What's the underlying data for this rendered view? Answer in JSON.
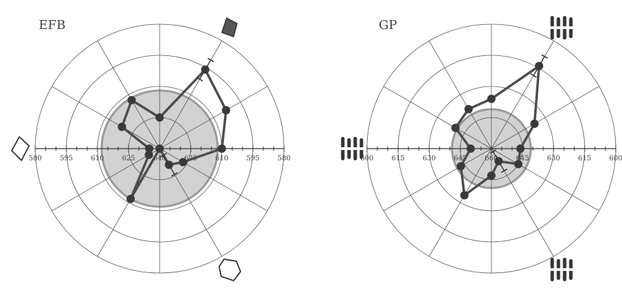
{
  "chart_data": [
    {
      "type": "polar-line",
      "title": "EFB",
      "radial_axis": {
        "center_value": 640,
        "outer_value": 580,
        "rings": [
          580,
          595,
          610,
          625,
          640
        ]
      },
      "tick_labels": [
        "580",
        "595",
        "610",
        "625",
        "640",
        "625",
        "610",
        "595",
        "580"
      ],
      "shaded_disc_value": 612,
      "angles_deg": [
        0,
        30,
        60,
        90,
        120,
        150,
        180,
        210,
        240,
        270,
        300,
        330
      ],
      "series": [
        {
          "values": [
            610,
            603,
            596,
            625,
            613,
            619,
            635,
            634,
            612,
            640,
            631,
            627
          ]
        }
      ],
      "error_bars": [
        {
          "angle_deg": 60,
          "value": 596
        },
        {
          "angle_deg": 300,
          "value": 631
        }
      ],
      "markers": [
        {
          "angle_deg": 60,
          "glyph": "filled-diamond",
          "color": "#555555"
        },
        {
          "angle_deg": 180,
          "glyph": "open-diamond",
          "color": "#ffffff"
        },
        {
          "angle_deg": 300,
          "glyph": "open-hexagon",
          "color": "#ffffff"
        }
      ],
      "grid": true
    },
    {
      "type": "polar-line",
      "title": "GP",
      "radial_axis": {
        "center_value": 660,
        "outer_value": 600,
        "rings": [
          600,
          615,
          630,
          645,
          660
        ]
      },
      "tick_labels": [
        "600",
        "615",
        "630",
        "645",
        "660",
        "645",
        "630",
        "615",
        "600"
      ],
      "shaded_disc_value": 641,
      "angles_deg": [
        0,
        30,
        60,
        90,
        120,
        150,
        180,
        210,
        240,
        270,
        300,
        330
      ],
      "series": [
        {
          "values": [
            646,
            636,
            614,
            636,
            638,
            640,
            650,
            643,
            634,
            647,
            653,
            645
          ]
        }
      ],
      "error_bars": [
        {
          "angle_deg": 60,
          "value": 614
        },
        {
          "angle_deg": 300,
          "value": 653
        }
      ],
      "markers": [
        {
          "angle_deg": 60,
          "glyph": "striped-grating",
          "color": "#333333"
        },
        {
          "angle_deg": 180,
          "glyph": "striped-grating",
          "color": "#333333"
        },
        {
          "angle_deg": 300,
          "glyph": "striped-grating",
          "color": "#333333"
        }
      ],
      "grid": true
    }
  ],
  "colors": {
    "series_line": "#4d4d4d",
    "series_point": "#3a3a3a",
    "grid": "#555555",
    "disc_fill": "#d2d2d2",
    "disc_stroke": "#9a9a9a"
  }
}
